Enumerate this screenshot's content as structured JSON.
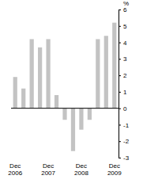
{
  "chart_data": {
    "type": "bar",
    "y_label": "%",
    "categories": [
      "Dec 2006",
      null,
      null,
      null,
      "Dec 2007",
      null,
      null,
      null,
      "Dec 2008",
      null,
      null,
      null,
      "Dec 2009"
    ],
    "values": [
      1.9,
      1.2,
      4.2,
      3.7,
      4.2,
      0.8,
      -0.7,
      -2.6,
      -1.3,
      -0.7,
      4.2,
      4.4,
      5.2
    ],
    "color": "#c3c3c3",
    "ylim": [
      -3,
      6
    ],
    "yticks": [
      -3,
      -2,
      -1,
      0,
      1,
      2,
      3,
      4,
      5,
      6
    ],
    "grid": false
  }
}
